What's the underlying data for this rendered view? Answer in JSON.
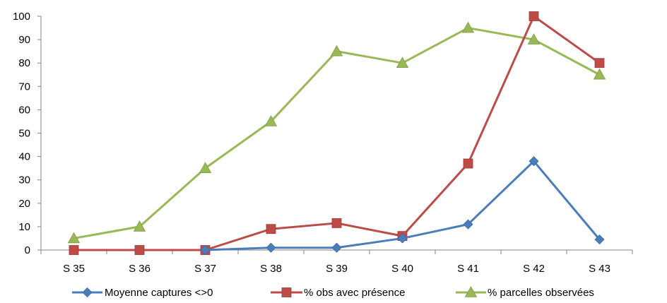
{
  "chart_data": {
    "type": "line",
    "categories": [
      "S 35",
      "S 36",
      "S 37",
      "S 38",
      "S 39",
      "S 40",
      "S 41",
      "S 42",
      "S 43"
    ],
    "ylim": [
      0,
      100
    ],
    "yticks": [
      0,
      10,
      20,
      30,
      40,
      50,
      60,
      70,
      80,
      90,
      100
    ],
    "grid": false,
    "legend_position": "bottom",
    "series": [
      {
        "name": "Moyenne captures <>0",
        "color": "#4a7ebb",
        "marker": "diamond",
        "values": [
          null,
          null,
          0,
          1,
          1,
          5,
          11,
          38,
          4.5
        ]
      },
      {
        "name": "% obs avec présence",
        "color": "#be4b48",
        "marker": "square",
        "values": [
          0,
          0,
          0,
          9,
          11.5,
          6,
          37,
          100,
          80
        ]
      },
      {
        "name": "% parcelles observées",
        "color": "#98b954",
        "marker": "triangle",
        "values": [
          5,
          10,
          35,
          55,
          85,
          80,
          95,
          90,
          75
        ]
      }
    ]
  }
}
